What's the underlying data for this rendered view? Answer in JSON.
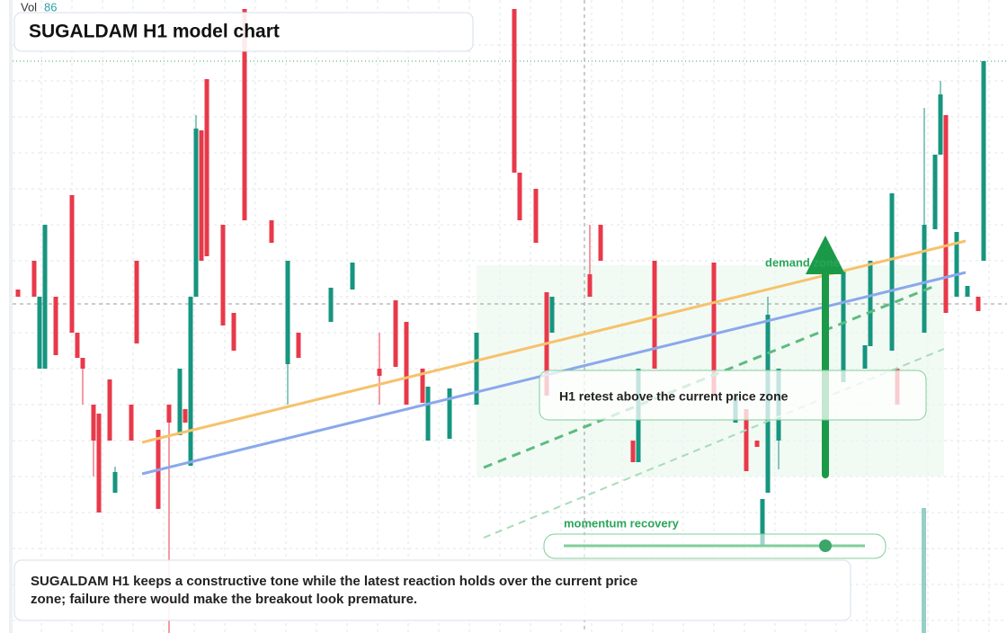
{
  "chart_data": {
    "type": "candlestick",
    "title": "SUGALDAM H1 model chart",
    "volume_label": "Vol",
    "volume_value": "86",
    "annotations": {
      "zone": "demand zone",
      "retest": "H1 retest above the current price zone",
      "momentum": "momentum recovery"
    },
    "note": "SUGALDAM H1 keeps a constructive tone while the latest reaction holds over the current price zone; failure there would make the breakout look premature.",
    "up_color": "#16957f",
    "down_color": "#e8394a",
    "grid": true,
    "xlim": [
      0,
      181
    ],
    "ylim": [
      0,
      70.4
    ],
    "x": [
      1,
      4,
      5,
      6,
      8,
      11,
      12,
      13,
      15,
      16,
      18,
      19,
      22,
      23,
      27,
      29,
      31,
      32,
      33,
      34,
      35,
      36,
      39,
      41,
      43,
      48,
      51,
      53,
      59,
      63,
      68,
      71,
      73,
      76,
      77,
      81,
      86,
      93,
      94,
      97,
      99,
      100,
      107,
      109,
      115,
      116,
      119,
      130,
      134,
      136,
      138,
      139,
      140,
      142,
      154,
      158,
      159,
      163,
      164,
      169,
      171,
      172,
      173,
      175,
      177,
      179,
      180
    ],
    "open": [
      38.2,
      41.4,
      29.4,
      29.4,
      37.4,
      48.7,
      33.4,
      30.6,
      25.4,
      24.4,
      28.2,
      15.6,
      25.4,
      41.4,
      22.6,
      25.4,
      22.0,
      24.9,
      18.6,
      37.4,
      55.9,
      61.6,
      45.4,
      35.6,
      69.4,
      45.9,
      29.9,
      33.4,
      34.6,
      38.2,
      29.4,
      37.0,
      34.6,
      29.4,
      21.4,
      21.6,
      25.4,
      69.4,
      51.2,
      49.4,
      37.9,
      33.4,
      39.9,
      45.4,
      21.4,
      19.0,
      41.4,
      41.2,
      23.4,
      24.9,
      21.4,
      9.7,
      15.6,
      21.4,
      27.9,
      29.4,
      31.9,
      31.4,
      29.4,
      33.4,
      44.9,
      53.2,
      57.6,
      37.4,
      37.4,
      37.4,
      41.4
    ],
    "high": [
      38.2,
      41.4,
      37.4,
      45.4,
      37.4,
      48.7,
      33.4,
      30.6,
      25.4,
      24.4,
      28.2,
      18.5,
      25.4,
      41.4,
      22.6,
      25.4,
      29.4,
      24.9,
      37.4,
      57.6,
      55.9,
      61.6,
      45.4,
      35.6,
      69.4,
      45.9,
      41.4,
      33.4,
      38.4,
      41.2,
      33.4,
      37.0,
      34.6,
      29.4,
      27.4,
      27.2,
      33.4,
      69.4,
      51.2,
      49.4,
      37.9,
      37.4,
      45.4,
      45.4,
      21.4,
      29.4,
      41.4,
      41.2,
      26.4,
      24.9,
      21.4,
      14.9,
      37.4,
      29.4,
      40.4,
      32.0,
      41.4,
      48.9,
      29.4,
      58.4,
      53.2,
      61.4,
      57.6,
      44.6,
      38.6,
      37.4,
      63.6
    ],
    "low": [
      37.4,
      37.4,
      29.4,
      29.4,
      30.9,
      33.4,
      30.6,
      25.4,
      17.4,
      13.4,
      21.4,
      15.6,
      21.4,
      32.2,
      13.8,
      0,
      22.0,
      23.4,
      18.6,
      37.4,
      41.4,
      41.9,
      34.2,
      31.4,
      45.9,
      43.4,
      25.4,
      30.6,
      34.6,
      38.2,
      25.4,
      29.6,
      25.4,
      25.6,
      21.4,
      21.6,
      25.4,
      51.2,
      45.9,
      43.4,
      26.4,
      33.4,
      37.4,
      41.4,
      19.0,
      19.0,
      29.4,
      26.4,
      23.4,
      18.0,
      20.7,
      9.7,
      15.6,
      18.2,
      27.9,
      29.4,
      31.9,
      31.4,
      25.4,
      33.4,
      44.9,
      53.2,
      35.6,
      37.4,
      37.4,
      35.8,
      41.4
    ],
    "close": [
      37.4,
      37.4,
      37.4,
      45.4,
      30.9,
      33.4,
      30.6,
      29.4,
      21.4,
      13.4,
      21.4,
      17.9,
      21.4,
      32.2,
      13.8,
      23.4,
      29.4,
      23.4,
      37.4,
      56.1,
      41.4,
      41.9,
      34.2,
      31.4,
      45.9,
      43.4,
      41.4,
      30.6,
      38.4,
      41.2,
      28.6,
      29.6,
      25.4,
      25.6,
      27.4,
      27.2,
      33.4,
      51.2,
      45.9,
      43.4,
      26.4,
      37.4,
      37.4,
      41.4,
      19.0,
      29.4,
      29.4,
      26.4,
      26.4,
      18.0,
      20.7,
      14.9,
      35.4,
      29.4,
      40.4,
      32.0,
      41.4,
      48.9,
      25.4,
      45.4,
      53.2,
      59.9,
      35.6,
      44.6,
      38.6,
      35.8,
      63.6
    ]
  }
}
